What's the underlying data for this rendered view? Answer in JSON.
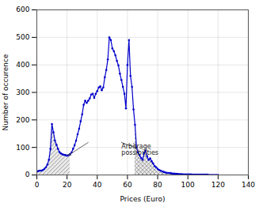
{
  "chart_data": {
    "type": "line",
    "xlabel": "Prices (Euro)",
    "ylabel": "Number of occurence",
    "xlim": [
      0,
      140
    ],
    "ylim": [
      0,
      600
    ],
    "xticks": [
      0,
      20,
      40,
      60,
      80,
      100,
      120,
      140
    ],
    "yticks": [
      0,
      100,
      200,
      300,
      400,
      500,
      600
    ],
    "grid": true,
    "color": "#0000cc",
    "marker": "circle",
    "x": [
      0,
      1,
      2,
      3,
      4,
      5,
      6,
      7,
      8,
      9,
      10,
      11,
      12,
      13,
      14,
      15,
      16,
      17,
      18,
      19,
      20,
      21,
      22,
      23,
      24,
      25,
      26,
      27,
      28,
      29,
      30,
      31,
      32,
      33,
      34,
      35,
      36,
      37,
      38,
      39,
      40,
      41,
      42,
      43,
      44,
      45,
      46,
      47,
      48,
      49,
      50,
      51,
      52,
      53,
      54,
      55,
      56,
      57,
      58,
      59,
      60,
      61,
      62,
      63,
      64,
      65,
      66,
      67,
      68,
      69,
      70,
      71,
      72,
      73,
      74,
      75,
      76,
      77,
      78,
      79,
      80,
      81,
      82,
      83,
      84,
      85,
      86,
      87,
      88,
      89,
      90,
      91,
      92,
      93,
      94,
      95,
      96,
      97,
      98,
      99,
      100,
      101,
      102,
      103,
      104,
      105,
      106,
      107,
      108,
      109,
      110,
      111,
      112,
      113,
      114,
      115,
      116,
      117,
      118,
      119,
      120
    ],
    "values": [
      12,
      14,
      16,
      16,
      18,
      22,
      28,
      38,
      55,
      95,
      185,
      155,
      125,
      110,
      95,
      83,
      78,
      75,
      73,
      72,
      70,
      72,
      75,
      82,
      95,
      108,
      125,
      148,
      168,
      195,
      220,
      255,
      270,
      262,
      270,
      278,
      292,
      295,
      280,
      295,
      305,
      318,
      322,
      308,
      318,
      355,
      382,
      420,
      500,
      490,
      460,
      450,
      435,
      415,
      398,
      368,
      345,
      320,
      295,
      242,
      400,
      490,
      360,
      320,
      238,
      182,
      100,
      82,
      72,
      62,
      55,
      80,
      88,
      68,
      55,
      60,
      50,
      42,
      32,
      28,
      22,
      18,
      16,
      13,
      11,
      9,
      8,
      7,
      7,
      6,
      5,
      5,
      4,
      4,
      3,
      3,
      3,
      2,
      2,
      2,
      2,
      2,
      2,
      1,
      1,
      1,
      1,
      1,
      1,
      1,
      1,
      1,
      1,
      1,
      0,
      0,
      0,
      0,
      0,
      0,
      0
    ],
    "shaded_regions": [
      {
        "x_start": 0,
        "x_end": 22
      },
      {
        "x_start": 65,
        "x_end": 95
      }
    ],
    "annotations": [
      {
        "text": "Arbitrage\npossibilities",
        "x": 56,
        "y": 118,
        "arrows": [
          {
            "x1": 34,
            "y1": 118,
            "x2": 21,
            "y2": 72
          },
          {
            "x1": 56,
            "y1": 118,
            "x2": 66,
            "y2": 98
          }
        ]
      }
    ]
  }
}
